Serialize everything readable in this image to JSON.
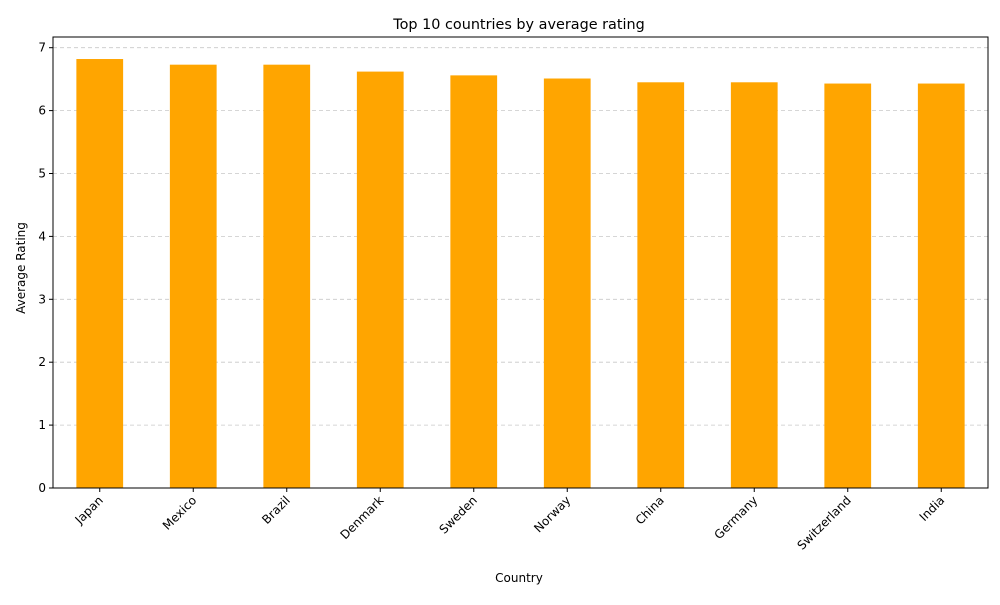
{
  "chart_data": {
    "type": "bar",
    "title": "Top 10 countries by average rating",
    "xlabel": "Country",
    "ylabel": "Average Rating",
    "categories": [
      "Japan",
      "Mexico",
      "Brazil",
      "Denmark",
      "Sweden",
      "Norway",
      "China",
      "Germany",
      "Switzerland",
      "India"
    ],
    "values": [
      6.82,
      6.73,
      6.73,
      6.62,
      6.56,
      6.51,
      6.45,
      6.45,
      6.43,
      6.43
    ],
    "ylim": [
      0,
      7.17
    ],
    "yticks": [
      0,
      1,
      2,
      3,
      4,
      5,
      6,
      7
    ],
    "grid": "horizontal-dashed",
    "bar_color": "#ffa500",
    "grid_color": "#c8c8c8",
    "x_tick_rotation_deg": 45
  }
}
